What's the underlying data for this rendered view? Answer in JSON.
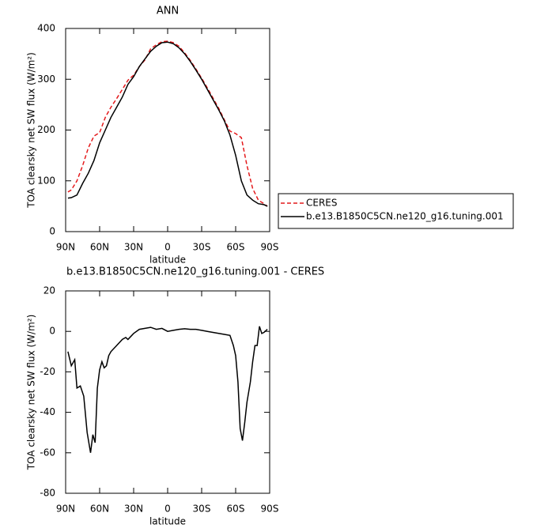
{
  "chart_data": [
    {
      "type": "line",
      "title": "ANN",
      "xlabel": "latitude",
      "ylabel": "TOA clearsky net SW flux (W/m²)",
      "xlim": [
        90,
        -90
      ],
      "xticks": [
        {
          "value": 90,
          "label": "90N"
        },
        {
          "value": 60,
          "label": "60N"
        },
        {
          "value": 30,
          "label": "30N"
        },
        0,
        {
          "value": -30,
          "label": "30S"
        },
        {
          "value": -60,
          "label": "60S"
        },
        {
          "value": -90,
          "label": "90S"
        }
      ],
      "ylim": [
        0,
        400
      ],
      "yticks": [
        0,
        100,
        200,
        300,
        400
      ],
      "x": [
        88,
        85,
        80,
        75,
        70,
        65,
        60,
        55,
        50,
        45,
        40,
        35,
        30,
        25,
        20,
        15,
        10,
        5,
        0,
        -5,
        -10,
        -15,
        -20,
        -25,
        -30,
        -35,
        -40,
        -45,
        -50,
        -55,
        -60,
        -65,
        -70,
        -75,
        -80,
        -85,
        -88
      ],
      "series": [
        {
          "name": "CERES",
          "color": "#e41a1c",
          "dashed": true,
          "values": [
            78,
            82,
            100,
            130,
            165,
            188,
            195,
            225,
            245,
            262,
            280,
            298,
            308,
            325,
            338,
            360,
            368,
            374,
            375,
            372,
            365,
            352,
            337,
            320,
            302,
            283,
            263,
            243,
            220,
            198,
            193,
            185,
            130,
            85,
            62,
            55,
            50
          ]
        },
        {
          "name": "b.e13.B1850C5CN.ne120_g16.tuning.001",
          "color": "#000000",
          "dashed": false,
          "values": [
            66,
            67,
            72,
            95,
            115,
            140,
            175,
            200,
            225,
            245,
            265,
            290,
            305,
            325,
            340,
            355,
            365,
            372,
            373,
            370,
            362,
            350,
            335,
            318,
            300,
            280,
            260,
            240,
            218,
            190,
            150,
            100,
            72,
            62,
            55,
            53,
            50
          ]
        }
      ]
    },
    {
      "type": "line",
      "title": "b.e13.B1850C5CN.ne120_g16.tuning.001 - CERES",
      "xlabel": "latitude",
      "ylabel": "TOA clearsky net SW flux (W/m²)",
      "xlim": [
        90,
        -90
      ],
      "xticks": [
        {
          "value": 90,
          "label": "90N"
        },
        {
          "value": 60,
          "label": "60N"
        },
        {
          "value": 30,
          "label": "30N"
        },
        0,
        {
          "value": -30,
          "label": "30S"
        },
        {
          "value": -60,
          "label": "60S"
        },
        {
          "value": -90,
          "label": "90S"
        }
      ],
      "ylim": [
        -80,
        20
      ],
      "yticks": [
        -80,
        -60,
        -40,
        -20,
        0,
        20
      ],
      "x": [
        88,
        85,
        82,
        80,
        77,
        74,
        71,
        68,
        66,
        64,
        62,
        60,
        58,
        56,
        54,
        52,
        50,
        45,
        40,
        37,
        35,
        30,
        25,
        20,
        15,
        10,
        5,
        0,
        -5,
        -10,
        -15,
        -20,
        -25,
        -30,
        -35,
        -40,
        -45,
        -50,
        -55,
        -58,
        -60,
        -62,
        -64,
        -66,
        -68,
        -70,
        -73,
        -75,
        -77,
        -79,
        -81,
        -83,
        -85,
        -88
      ],
      "series": [
        {
          "color": "#000000",
          "dashed": false,
          "values": [
            -10,
            -17,
            -14,
            -28,
            -27,
            -32,
            -50,
            -60,
            -51,
            -55,
            -28,
            -19,
            -15,
            -18,
            -17,
            -12,
            -10,
            -7,
            -4,
            -3,
            -4,
            -1,
            1,
            1.5,
            2,
            1,
            1.5,
            0,
            0.5,
            1,
            1.3,
            1,
            1,
            0.5,
            0,
            -0.5,
            -1,
            -1.5,
            -2,
            -7,
            -12,
            -25,
            -48,
            -54,
            -45,
            -35,
            -25,
            -15,
            -7,
            -7,
            2.5,
            -1,
            -0.5,
            1
          ]
        }
      ]
    }
  ]
}
